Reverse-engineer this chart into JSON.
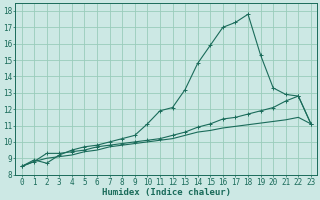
{
  "xlabel": "Humidex (Indice chaleur)",
  "bg_color": "#cce8e4",
  "grid_color": "#99ccbb",
  "line_color": "#1a6b5a",
  "xlim": [
    -0.5,
    23.5
  ],
  "ylim": [
    8,
    18.5
  ],
  "xticks": [
    0,
    1,
    2,
    3,
    4,
    5,
    6,
    7,
    8,
    9,
    10,
    11,
    12,
    13,
    14,
    15,
    16,
    17,
    18,
    19,
    20,
    21,
    22,
    23
  ],
  "yticks": [
    8,
    9,
    10,
    11,
    12,
    13,
    14,
    15,
    16,
    17,
    18
  ],
  "curve1_x": [
    0,
    1,
    2,
    3,
    4,
    5,
    6,
    7,
    8,
    9,
    10,
    11,
    12,
    13,
    14,
    15,
    16,
    17,
    18,
    19,
    20,
    21,
    22,
    23
  ],
  "curve1_y": [
    8.5,
    8.9,
    8.7,
    9.2,
    9.5,
    9.7,
    9.8,
    10.0,
    10.2,
    10.4,
    11.1,
    11.9,
    12.1,
    13.2,
    14.8,
    15.9,
    17.0,
    17.3,
    17.8,
    15.3,
    13.3,
    12.9,
    12.8,
    11.1
  ],
  "curve2_x": [
    0,
    1,
    2,
    3,
    4,
    5,
    6,
    7,
    8,
    9,
    10,
    11,
    12,
    13,
    14,
    15,
    16,
    17,
    18,
    19,
    20,
    21,
    22,
    23
  ],
  "curve2_y": [
    8.5,
    8.8,
    9.3,
    9.3,
    9.4,
    9.5,
    9.7,
    9.8,
    9.9,
    10.0,
    10.1,
    10.2,
    10.4,
    10.6,
    10.9,
    11.1,
    11.4,
    11.5,
    11.7,
    11.9,
    12.1,
    12.5,
    12.8,
    11.1
  ],
  "curve3_x": [
    0,
    1,
    2,
    3,
    4,
    5,
    6,
    7,
    8,
    9,
    10,
    11,
    12,
    13,
    14,
    15,
    16,
    17,
    18,
    19,
    20,
    21,
    22,
    23
  ],
  "curve3_y": [
    8.5,
    8.8,
    9.0,
    9.1,
    9.2,
    9.4,
    9.5,
    9.7,
    9.8,
    9.9,
    10.0,
    10.1,
    10.2,
    10.4,
    10.6,
    10.7,
    10.85,
    10.95,
    11.05,
    11.15,
    11.25,
    11.35,
    11.5,
    11.1
  ],
  "fontsize_xlabel": 6.5,
  "fontsize_ticks": 5.5
}
